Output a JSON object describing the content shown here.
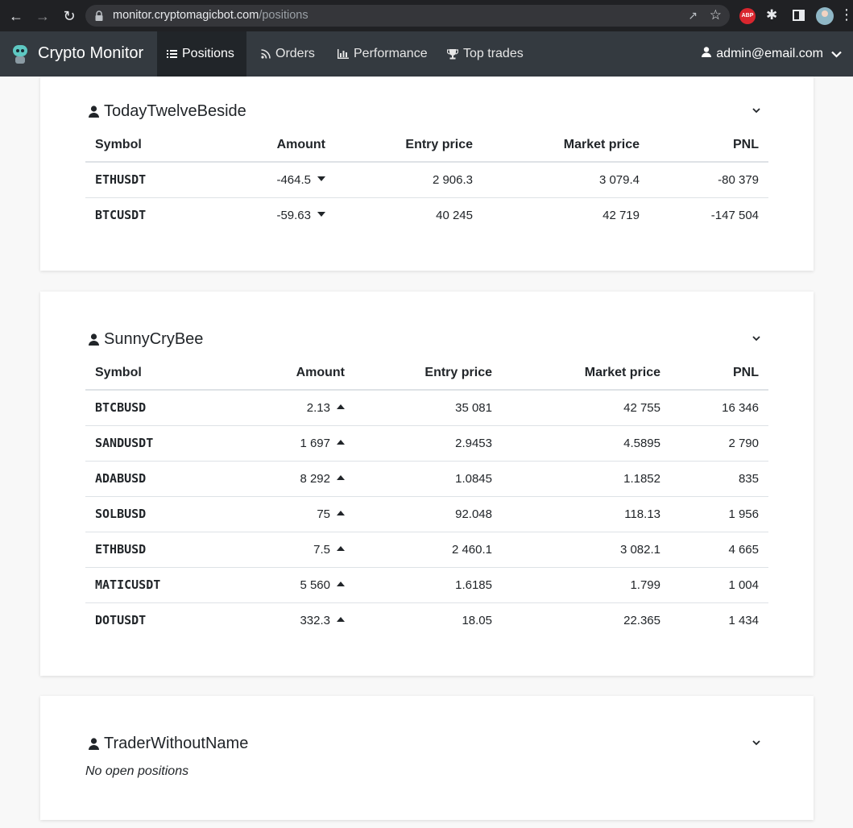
{
  "browser": {
    "url_host": "monitor.cryptomagicbot.com",
    "url_path": "/positions",
    "abp_label": "ABP"
  },
  "app": {
    "brand": "Crypto Monitor",
    "nav": [
      {
        "label": "Positions",
        "icon": "list-icon",
        "active": true
      },
      {
        "label": "Orders",
        "icon": "rss-icon"
      },
      {
        "label": "Performance",
        "icon": "bar-chart-icon"
      },
      {
        "label": "Top trades",
        "icon": "trophy-icon"
      }
    ],
    "user": "admin@email.com"
  },
  "colors": {
    "navbar": "#343a40",
    "active_nav": "#212529",
    "pnl_negative": "#e63757",
    "pnl_positive": "#3ebe6e"
  },
  "columns": [
    "Symbol",
    "Amount",
    "Entry price",
    "Market price",
    "PNL"
  ],
  "accounts": [
    {
      "name": "TodayTwelveBeside",
      "positions": [
        {
          "symbol": "ETHUSDT",
          "amount": "-464.5",
          "direction": "down",
          "entry": "2 906.3",
          "market": "3 079.4",
          "pnl": "-80 379"
        },
        {
          "symbol": "BTCUSDT",
          "amount": "-59.63",
          "direction": "down",
          "entry": "40 245",
          "market": "42 719",
          "pnl": "-147 504"
        }
      ]
    },
    {
      "name": "SunnyCryBee",
      "positions": [
        {
          "symbol": "BTCBUSD",
          "amount": "2.13",
          "direction": "up",
          "entry": "35 081",
          "market": "42 755",
          "pnl": "16 346"
        },
        {
          "symbol": "SANDUSDT",
          "amount": "1 697",
          "direction": "up",
          "entry": "2.9453",
          "market": "4.5895",
          "pnl": "2 790"
        },
        {
          "symbol": "ADABUSD",
          "amount": "8 292",
          "direction": "up",
          "entry": "1.0845",
          "market": "1.1852",
          "pnl": "835"
        },
        {
          "symbol": "SOLBUSD",
          "amount": "75",
          "direction": "up",
          "entry": "92.048",
          "market": "118.13",
          "pnl": "1 956"
        },
        {
          "symbol": "ETHBUSD",
          "amount": "7.5",
          "direction": "up",
          "entry": "2 460.1",
          "market": "3 082.1",
          "pnl": "4 665"
        },
        {
          "symbol": "MATICUSDT",
          "amount": "5 560",
          "direction": "up",
          "entry": "1.6185",
          "market": "1.799",
          "pnl": "1 004"
        },
        {
          "symbol": "DOTUSDT",
          "amount": "332.3",
          "direction": "up",
          "entry": "18.05",
          "market": "22.365",
          "pnl": "1 434"
        }
      ]
    },
    {
      "name": "TraderWithoutName",
      "empty_message": "No open positions"
    }
  ]
}
